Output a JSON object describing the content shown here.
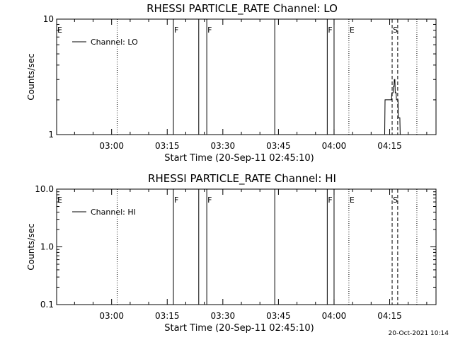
{
  "footer": {
    "timestamp": "20-Oct-2021 10:14"
  },
  "chart_data": [
    {
      "type": "line",
      "title": "RHESSI PARTICLE_RATE Channel: LO",
      "xlabel": "Start Time (20-Sep-11 02:45:10)",
      "ylabel": "Counts/sec",
      "y_scale": "log",
      "xlim": [
        "02:45:10",
        "04:27:30"
      ],
      "ylim": [
        1,
        10
      ],
      "x_ticks": [
        "03:00",
        "03:15",
        "03:30",
        "03:45",
        "04:00",
        "04:15"
      ],
      "y_ticks": [
        {
          "value": 1,
          "label": "1"
        },
        {
          "value": 10,
          "label": "10"
        }
      ],
      "legend": {
        "position": "top-left",
        "entries": [
          "Channel: LO"
        ]
      },
      "markers": [
        {
          "time": "02:45:10",
          "style": "none",
          "label": "E"
        },
        {
          "time": "03:01:30",
          "style": "dotted",
          "label": ""
        },
        {
          "time": "03:16:40",
          "style": "solid",
          "label": "F"
        },
        {
          "time": "03:23:30",
          "style": "solid",
          "label": ""
        },
        {
          "time": "03:25:40",
          "style": "solid",
          "label": "F"
        },
        {
          "time": "03:44:00",
          "style": "solid",
          "label": ""
        },
        {
          "time": "03:58:10",
          "style": "solid",
          "label": "F"
        },
        {
          "time": "04:00:00",
          "style": "solid",
          "label": ""
        },
        {
          "time": "04:04:00",
          "style": "dotted",
          "label": "E"
        },
        {
          "time": "04:15:40",
          "style": "dashed",
          "label": "S"
        },
        {
          "time": "04:17:10",
          "style": "dashed",
          "label": ""
        },
        {
          "time": "04:22:20",
          "style": "dotted",
          "label": ""
        }
      ],
      "series": [
        {
          "name": "Channel: LO",
          "x": [
            "04:13:40",
            "04:13:45",
            "04:15:30",
            "04:15:35",
            "04:15:55",
            "04:16:00",
            "04:16:10",
            "04:16:15",
            "04:16:25",
            "04:16:30",
            "04:16:45",
            "04:16:50",
            "04:17:15",
            "04:17:20",
            "04:17:45",
            "04:17:50"
          ],
          "y": [
            1,
            2,
            2,
            2.3,
            2.3,
            2.6,
            2.6,
            3,
            3,
            2.3,
            2.3,
            2,
            2,
            1.4,
            1.4,
            1
          ]
        }
      ]
    },
    {
      "type": "line",
      "title": "RHESSI PARTICLE_RATE Channel: HI",
      "xlabel": "Start Time (20-Sep-11 02:45:10)",
      "ylabel": "Counts/sec",
      "y_scale": "log",
      "xlim": [
        "02:45:10",
        "04:27:30"
      ],
      "ylim": [
        0.1,
        10
      ],
      "x_ticks": [
        "03:00",
        "03:15",
        "03:30",
        "03:45",
        "04:00",
        "04:15"
      ],
      "y_ticks": [
        {
          "value": 0.1,
          "label": "0.1"
        },
        {
          "value": 1,
          "label": "1.0"
        },
        {
          "value": 10,
          "label": "10.0"
        }
      ],
      "legend": {
        "position": "top-left",
        "entries": [
          "Channel: HI"
        ]
      },
      "markers": [
        {
          "time": "02:45:10",
          "style": "none",
          "label": "E"
        },
        {
          "time": "03:01:30",
          "style": "dotted",
          "label": ""
        },
        {
          "time": "03:16:40",
          "style": "solid",
          "label": "F"
        },
        {
          "time": "03:23:30",
          "style": "solid",
          "label": ""
        },
        {
          "time": "03:25:40",
          "style": "solid",
          "label": "F"
        },
        {
          "time": "03:44:00",
          "style": "solid",
          "label": ""
        },
        {
          "time": "03:58:10",
          "style": "solid",
          "label": "F"
        },
        {
          "time": "04:00:00",
          "style": "solid",
          "label": ""
        },
        {
          "time": "04:04:00",
          "style": "dotted",
          "label": "E"
        },
        {
          "time": "04:15:40",
          "style": "dashed",
          "label": "S"
        },
        {
          "time": "04:17:10",
          "style": "dashed",
          "label": ""
        },
        {
          "time": "04:22:20",
          "style": "dotted",
          "label": ""
        }
      ],
      "series": [
        {
          "name": "Channel: HI",
          "x": [],
          "y": []
        }
      ]
    }
  ]
}
